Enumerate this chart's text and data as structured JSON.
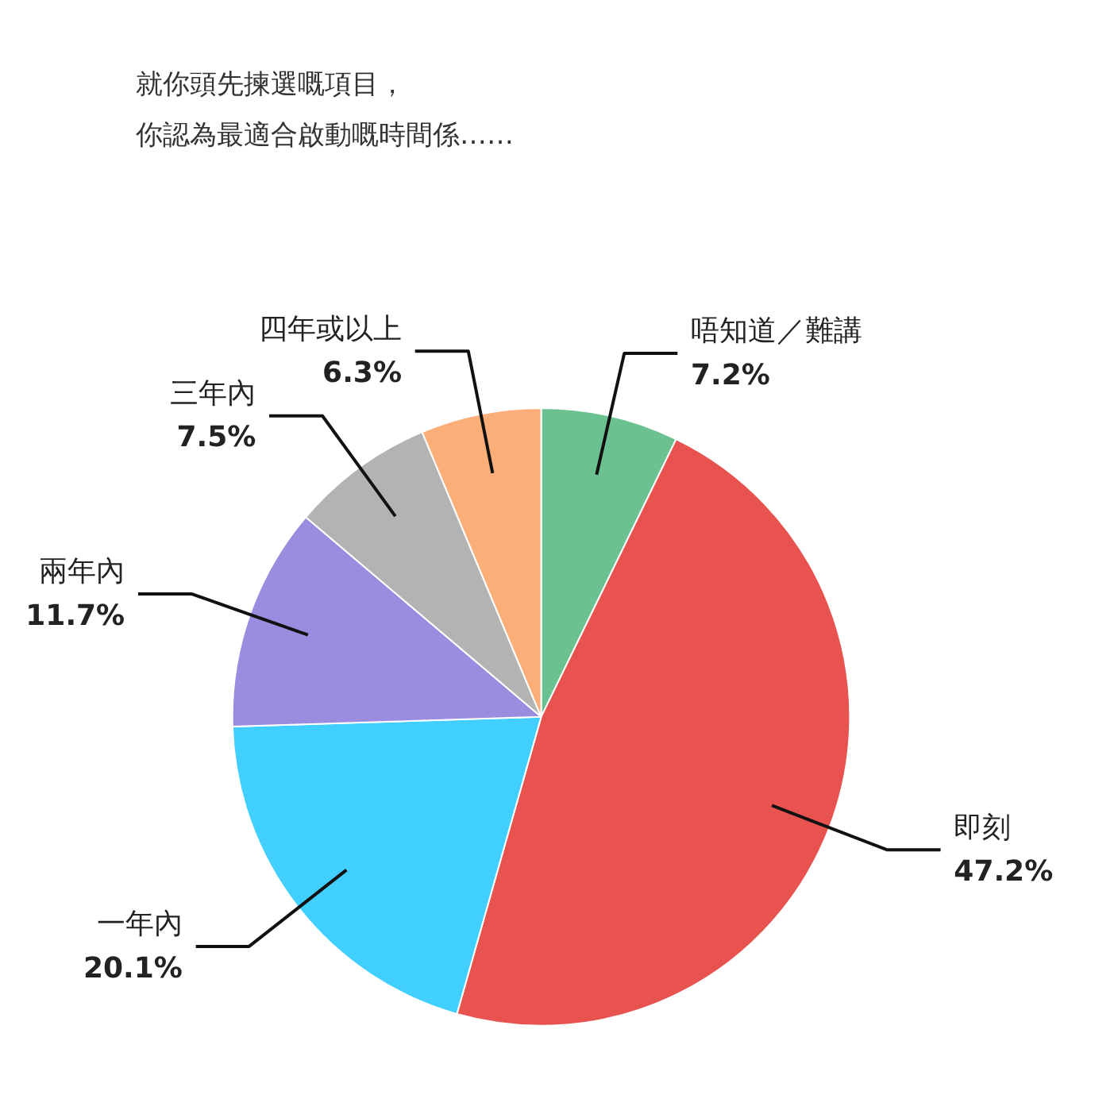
{
  "chart_data": {
    "type": "pie",
    "title": "就你頭先揀選嘅項目，",
    "subtitle": "你認為最適合啟動嘅時間係……",
    "categories": [
      "唔知道／難講",
      "即刻",
      "一年內",
      "兩年內",
      "三年內",
      "四年或以上"
    ],
    "values": [
      7.2,
      47.2,
      20.1,
      11.7,
      7.5,
      6.3
    ],
    "colors": [
      "#6cc190",
      "#e8524f",
      "#40cfff",
      "#9b8ce0",
      "#b3b3b3",
      "#fbae78"
    ],
    "value_labels": [
      "7.2%",
      "47.2%",
      "20.1%",
      "11.7%",
      "7.5%",
      "6.3%"
    ]
  }
}
